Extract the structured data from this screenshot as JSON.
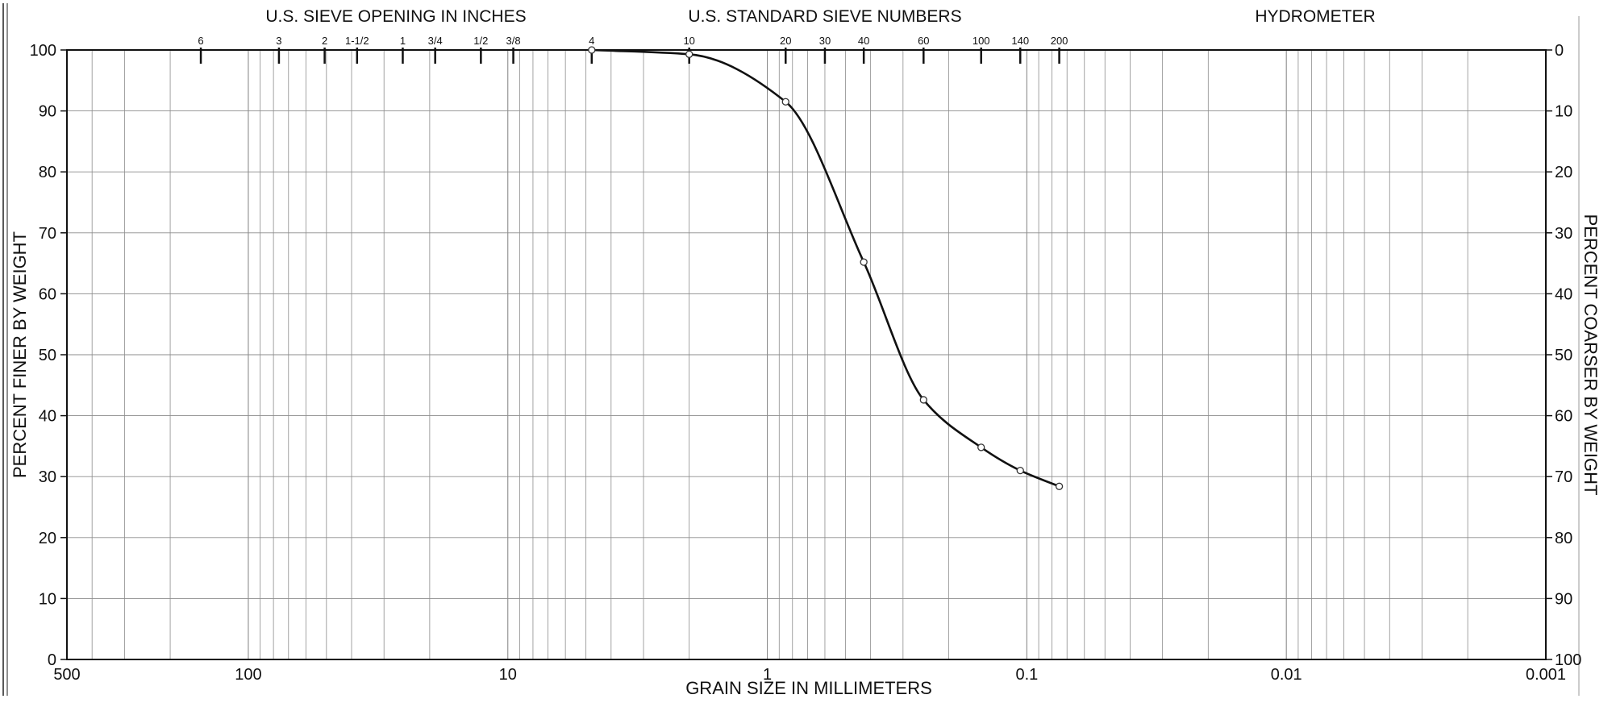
{
  "chart_data": {
    "type": "line",
    "title": "",
    "headers": {
      "sieve_opening_inches": "U.S. SIEVE OPENING IN INCHES",
      "standard_sieve_numbers": "U.S. STANDARD SIEVE NUMBERS",
      "hydrometer": "HYDROMETER"
    },
    "xlabel": "GRAIN SIZE IN MILLIMETERS",
    "ylabel_left": "PERCENT FINER BY WEIGHT",
    "ylabel_right": "PERCENT COARSER BY WEIGHT",
    "x_scale": "log",
    "x_reversed": true,
    "xlim": [
      500,
      0.001
    ],
    "ylim": [
      0,
      100
    ],
    "grid": true,
    "x_tick_labels": [
      {
        "value": 500,
        "label": "500"
      },
      {
        "value": 100,
        "label": "100"
      },
      {
        "value": 10,
        "label": "10"
      },
      {
        "value": 1,
        "label": "1"
      },
      {
        "value": 0.1,
        "label": "0.1"
      },
      {
        "value": 0.01,
        "label": "0.01"
      },
      {
        "value": 0.001,
        "label": "0.001"
      }
    ],
    "y_left_ticks": [
      "0",
      "10",
      "20",
      "30",
      "40",
      "50",
      "60",
      "70",
      "80",
      "90",
      "100"
    ],
    "y_right_ticks": [
      "100",
      "90",
      "80",
      "70",
      "60",
      "50",
      "40",
      "30",
      "20",
      "10",
      "0"
    ],
    "sieve_opening_marks": [
      {
        "label": "6",
        "size_mm": 152.4
      },
      {
        "label": "3",
        "size_mm": 76.2
      },
      {
        "label": "2",
        "size_mm": 50.8
      },
      {
        "label": "1-1/2",
        "size_mm": 38.1
      },
      {
        "label": "1",
        "size_mm": 25.4
      },
      {
        "label": "3/4",
        "size_mm": 19.05
      },
      {
        "label": "1/2",
        "size_mm": 12.7
      },
      {
        "label": "3/8",
        "size_mm": 9.525
      }
    ],
    "sieve_number_marks": [
      {
        "label": "4",
        "size_mm": 4.75
      },
      {
        "label": "10",
        "size_mm": 2.0
      },
      {
        "label": "20",
        "size_mm": 0.85
      },
      {
        "label": "30",
        "size_mm": 0.6
      },
      {
        "label": "40",
        "size_mm": 0.425
      },
      {
        "label": "60",
        "size_mm": 0.25
      },
      {
        "label": "100",
        "size_mm": 0.15
      },
      {
        "label": "140",
        "size_mm": 0.106
      },
      {
        "label": "200",
        "size_mm": 0.075
      }
    ],
    "series": [
      {
        "points": [
          {
            "x": 4.75,
            "y": 100
          },
          {
            "x": 2.0,
            "y": 99.3
          },
          {
            "x": 0.85,
            "y": 91.5
          },
          {
            "x": 0.425,
            "y": 65.2
          },
          {
            "x": 0.25,
            "y": 42.6
          },
          {
            "x": 0.15,
            "y": 34.8
          },
          {
            "x": 0.106,
            "y": 31.0
          },
          {
            "x": 0.075,
            "y": 28.4
          }
        ]
      }
    ],
    "colors": {
      "curve": "#111111",
      "grid": "#8c8c8c",
      "frame": "#111111",
      "marker_fill": "#ffffff"
    }
  }
}
